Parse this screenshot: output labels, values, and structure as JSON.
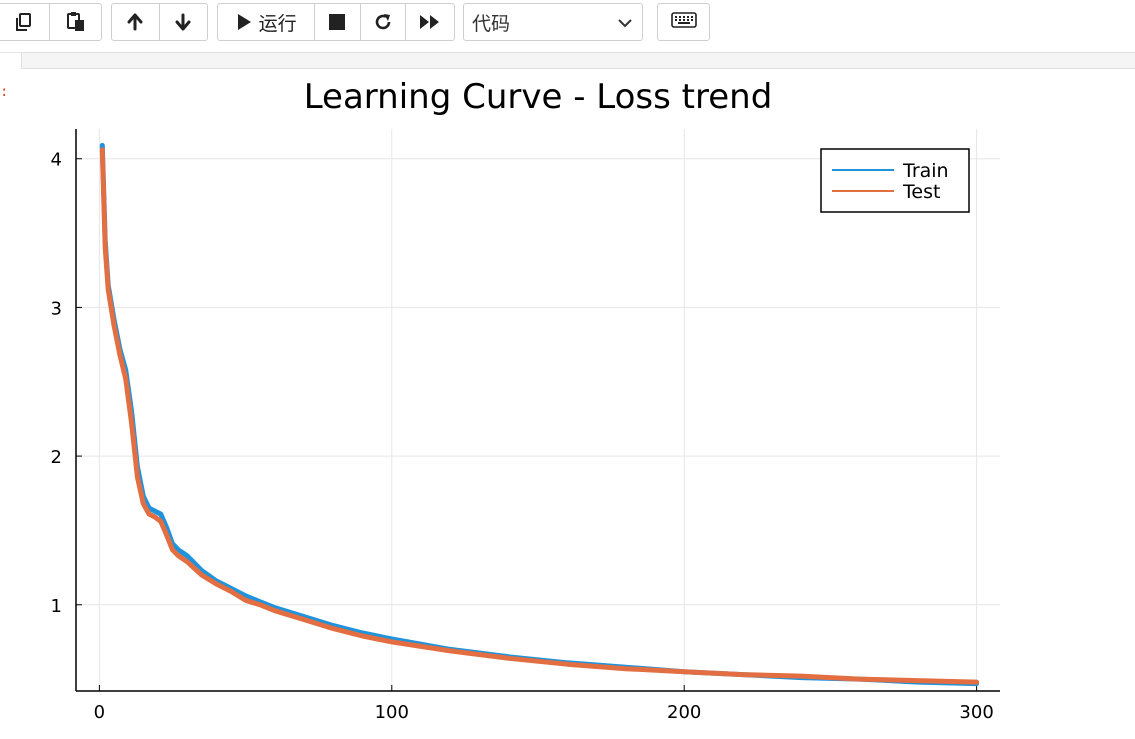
{
  "toolbar": {
    "buttons": [
      {
        "name": "copy-cells-button",
        "icon": "copy-icon"
      },
      {
        "name": "paste-cells-button",
        "icon": "paste-icon"
      },
      {
        "name": "move-up-button",
        "icon": "arrow-up-icon"
      },
      {
        "name": "move-down-button",
        "icon": "arrow-down-icon"
      },
      {
        "name": "run-button",
        "icon": "play-icon"
      },
      {
        "name": "interrupt-button",
        "icon": "stop-icon"
      },
      {
        "name": "restart-button",
        "icon": "restart-icon"
      },
      {
        "name": "run-all-button",
        "icon": "fast-forward-icon"
      },
      {
        "name": "command-palette-button",
        "icon": "keyboard-icon"
      }
    ],
    "run_label": "运行",
    "cell_type": "代码"
  },
  "output": {
    "prompt": ":"
  },
  "chart_data": {
    "type": "line",
    "title": "Learning Curve - Loss trend",
    "xlabel": "",
    "ylabel": "",
    "xlim": [
      -8,
      308
    ],
    "ylim": [
      0.42,
      4.2
    ],
    "xticks": [
      0,
      100,
      200,
      300
    ],
    "yticks": [
      1,
      2,
      3,
      4
    ],
    "grid": true,
    "legend_position": "top-right",
    "series": [
      {
        "name": "Train",
        "color": "#1f93dc",
        "x": [
          1,
          2,
          3,
          5,
          7,
          9,
          11,
          13,
          15,
          17,
          19,
          21,
          23,
          25,
          27,
          30,
          35,
          40,
          45,
          50,
          55,
          60,
          70,
          80,
          90,
          100,
          120,
          140,
          160,
          180,
          200,
          220,
          240,
          260,
          280,
          300
        ],
        "y": [
          4.09,
          3.45,
          3.15,
          2.92,
          2.72,
          2.58,
          2.3,
          1.93,
          1.73,
          1.65,
          1.63,
          1.61,
          1.52,
          1.41,
          1.37,
          1.33,
          1.23,
          1.16,
          1.11,
          1.06,
          1.02,
          0.98,
          0.92,
          0.86,
          0.81,
          0.77,
          0.7,
          0.65,
          0.61,
          0.58,
          0.55,
          0.53,
          0.51,
          0.5,
          0.48,
          0.47
        ]
      },
      {
        "name": "Test",
        "color": "#e26e41",
        "x": [
          1,
          2,
          3,
          5,
          7,
          9,
          11,
          13,
          15,
          17,
          19,
          21,
          23,
          25,
          27,
          30,
          35,
          40,
          45,
          50,
          55,
          60,
          70,
          80,
          90,
          100,
          120,
          140,
          160,
          180,
          200,
          220,
          240,
          260,
          280,
          300
        ],
        "y": [
          4.06,
          3.4,
          3.12,
          2.88,
          2.68,
          2.52,
          2.22,
          1.86,
          1.68,
          1.61,
          1.59,
          1.56,
          1.47,
          1.37,
          1.33,
          1.29,
          1.2,
          1.14,
          1.09,
          1.03,
          1.0,
          0.96,
          0.9,
          0.84,
          0.79,
          0.75,
          0.69,
          0.64,
          0.6,
          0.57,
          0.55,
          0.53,
          0.52,
          0.5,
          0.49,
          0.48
        ]
      }
    ]
  }
}
